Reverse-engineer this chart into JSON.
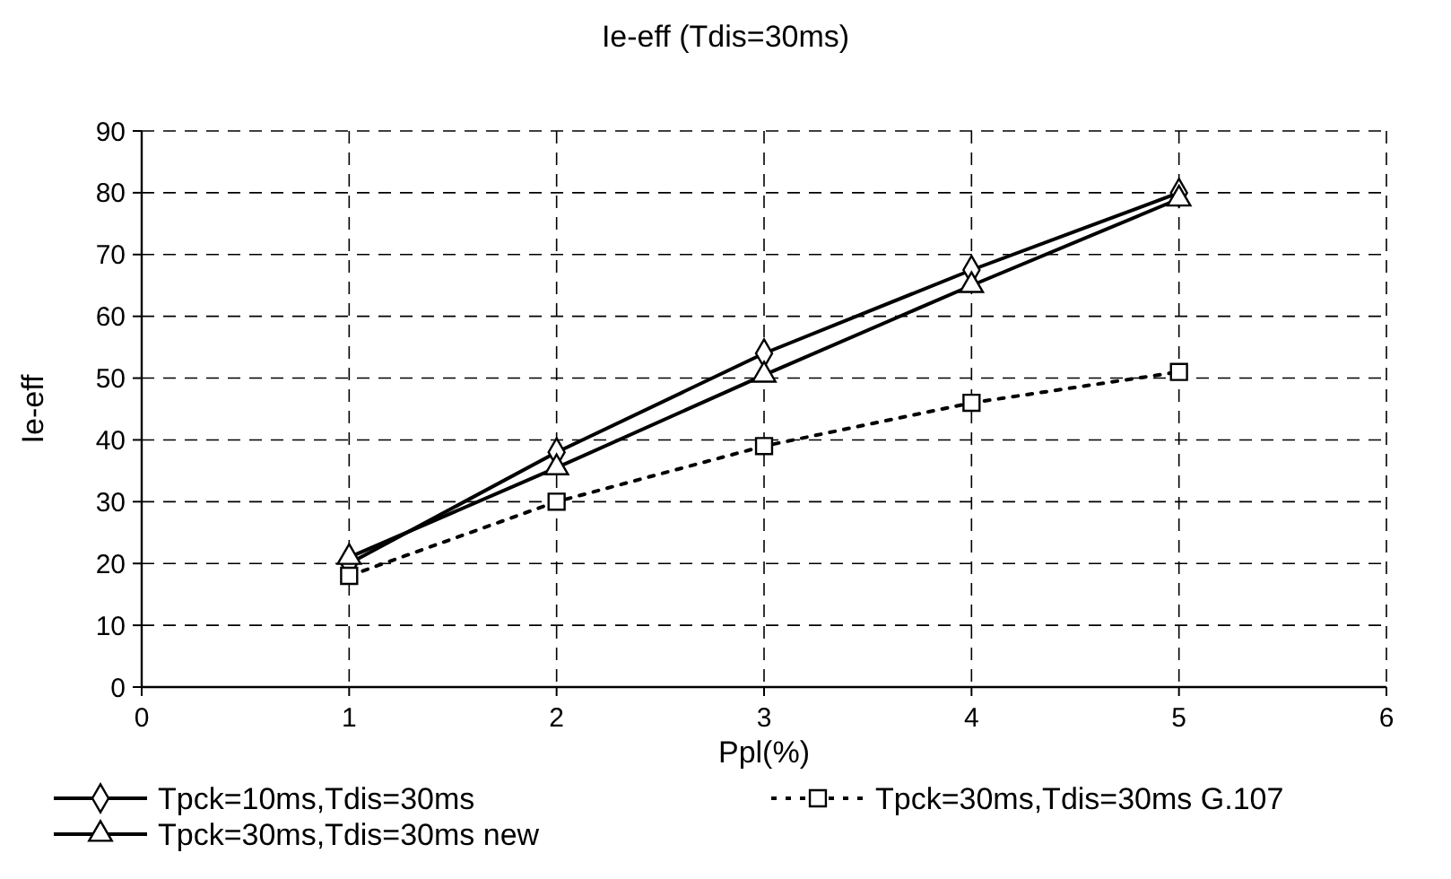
{
  "chart_data": {
    "type": "line",
    "title": "Ie-eff (Tdis=30ms)",
    "xlabel": "Ppl(%)",
    "ylabel": "Ie-eff",
    "x": [
      1,
      2,
      3,
      4,
      5
    ],
    "series": [
      {
        "name": "Tpck=10ms,Tdis=30ms",
        "color": "#000000",
        "marker": "diamond",
        "line_style": "solid",
        "values": [
          20,
          38,
          54,
          67.5,
          80
        ]
      },
      {
        "name": "Tpck=30ms,Tdis=30ms G.107",
        "color": "#000000",
        "marker": "square",
        "line_style": "dotted",
        "values": [
          18,
          30,
          39,
          46,
          51
        ]
      },
      {
        "name": "Tpck=30ms,Tdis=30ms new",
        "color": "#000000",
        "marker": "triangle",
        "line_style": "solid",
        "values": [
          21,
          35.5,
          50.5,
          65,
          79
        ]
      }
    ],
    "xlim": [
      0,
      6
    ],
    "xticks": [
      0,
      1,
      2,
      3,
      4,
      5,
      6
    ],
    "ylim": [
      0,
      90
    ],
    "yticks": [
      0,
      10,
      20,
      30,
      40,
      50,
      60,
      70,
      80,
      90
    ],
    "grid": true,
    "legend": "bottom"
  }
}
